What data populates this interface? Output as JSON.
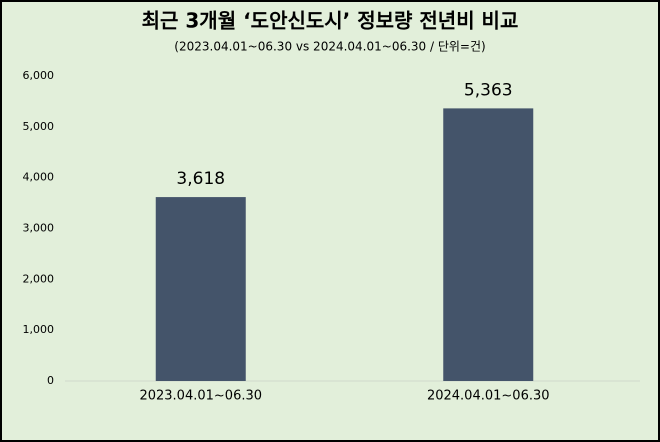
{
  "chart_data": {
    "type": "bar",
    "title": "최근 3개월 ‘도안신도시’ 정보량 전년비 비교",
    "subtitle": "(2023.04.01~06.30 vs 2024.04.01~06.30  / 단위=건)",
    "categories": [
      "2023.04.01~06.30",
      "2024.04.01~06.30"
    ],
    "values": [
      3618,
      5363
    ],
    "value_labels": [
      "3,618",
      "5,363"
    ],
    "color": "#44546a",
    "ylim": [
      0,
      6000
    ],
    "yticks": [
      0,
      {
        "value": 1000,
        "label": "1,000"
      },
      {
        "value": 2000,
        "label": "2,000"
      },
      {
        "value": 3000,
        "label": "3,000"
      },
      {
        "value": 4000,
        "label": "4,000"
      },
      {
        "value": 5000,
        "label": "5,000"
      },
      {
        "value": 6000,
        "label": "6,000"
      }
    ],
    "grid": false
  }
}
